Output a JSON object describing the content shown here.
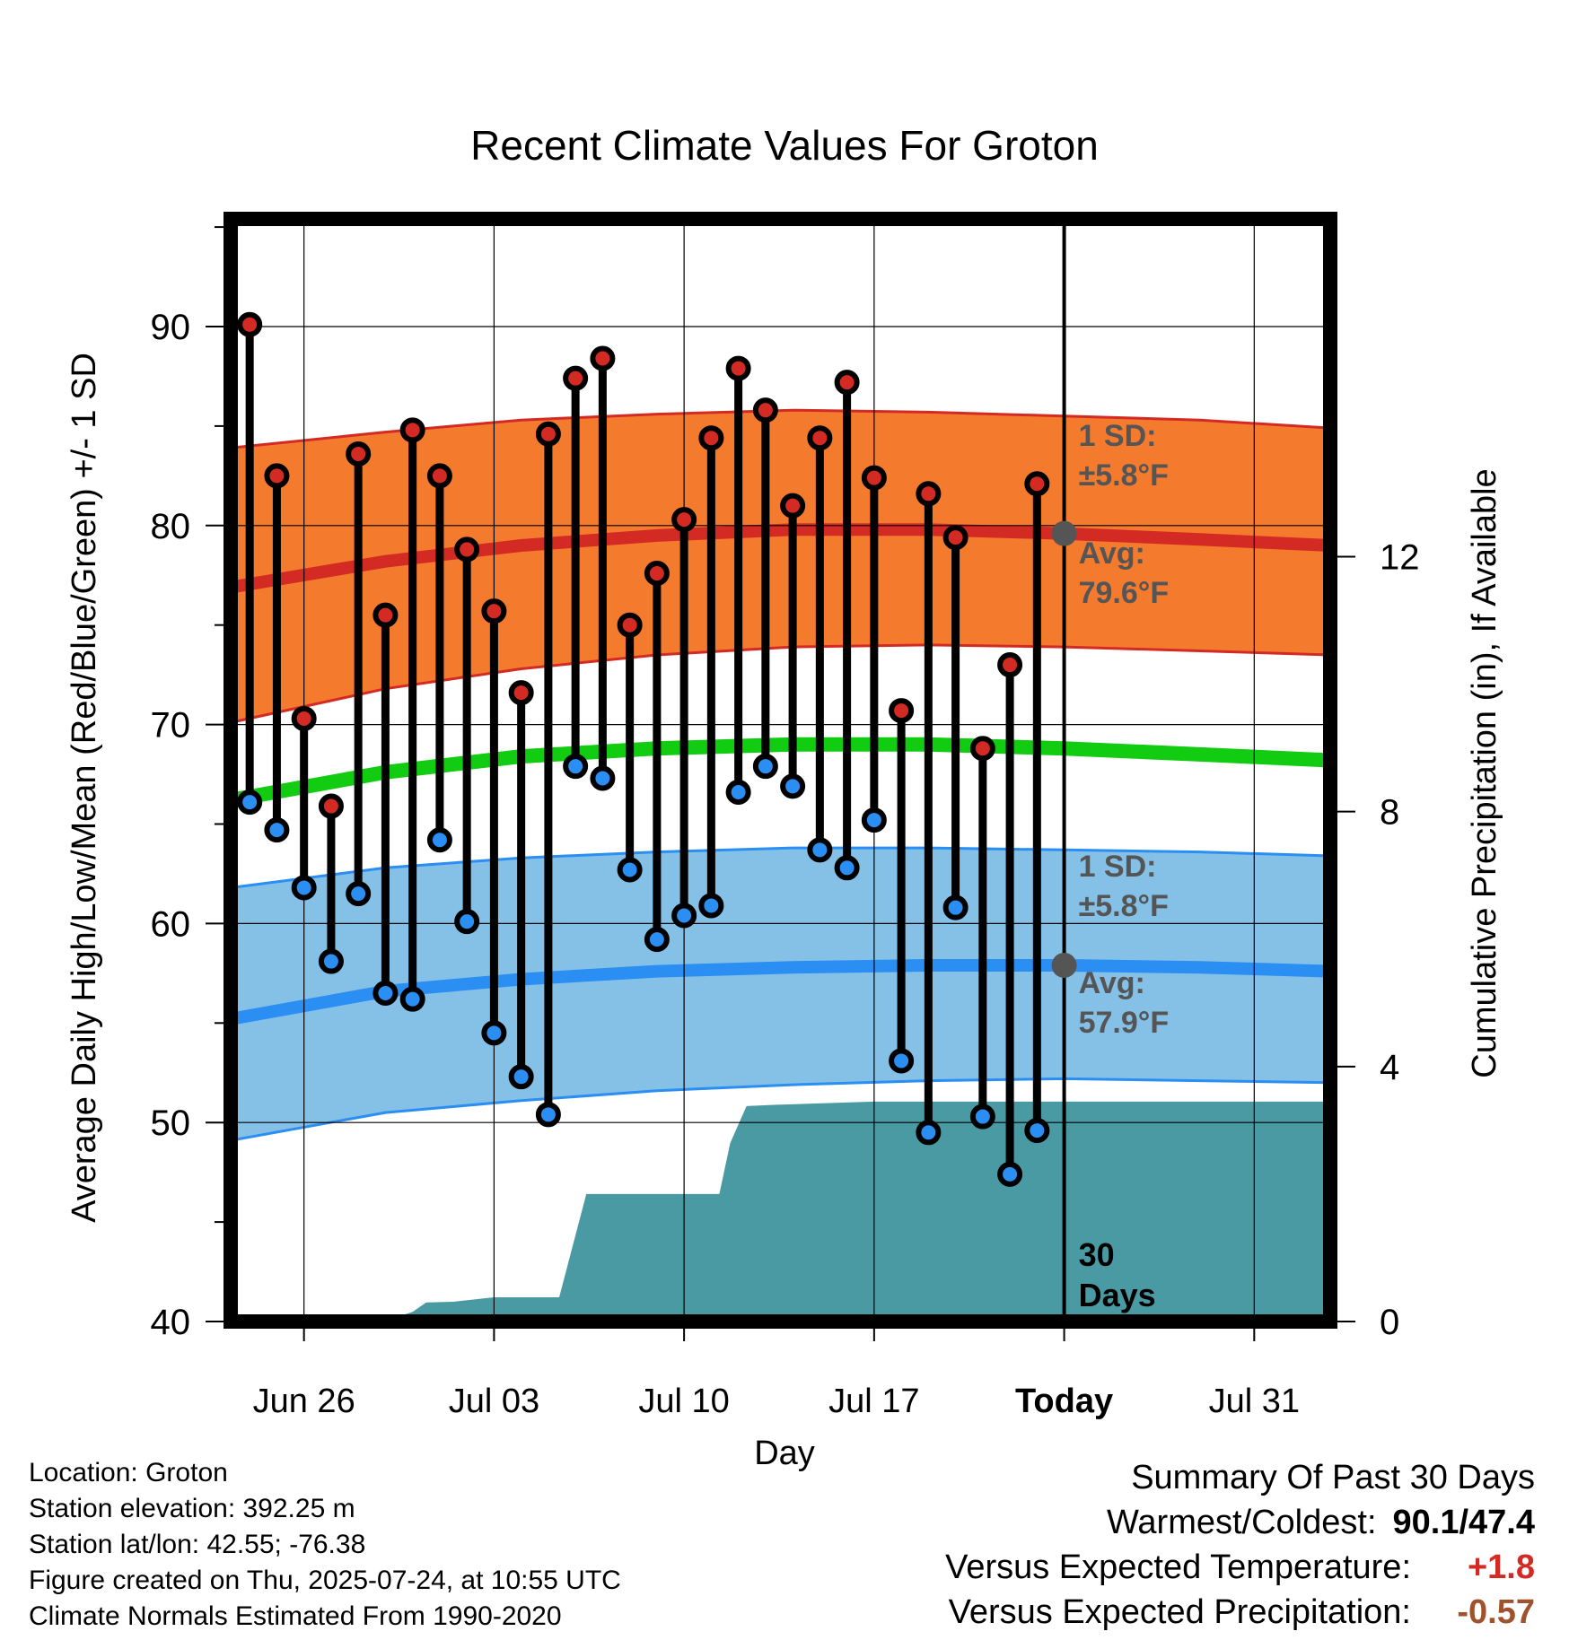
{
  "chart_data": {
    "type": "line",
    "title": "Recent Climate Values For Groton",
    "xlabel": "Day",
    "ylabel": "Average Daily High/Low/Mean (Red/Blue/Green) +/- 1 SD",
    "y2label": "Cumulative Precipitation (in), If Available",
    "ylim": [
      40,
      95
    ],
    "y2lim": [
      0,
      17.3
    ],
    "y_ticks": [
      "40",
      "50",
      "60",
      "70",
      "80",
      "90"
    ],
    "y2_ticks": [
      "0",
      "4",
      "8",
      "12"
    ],
    "x_ticks": [
      "Jun 26",
      "Jul 03",
      "Jul 10",
      "Jul 17",
      "Today",
      "Jul 31"
    ],
    "x_tick_days": [
      2,
      9,
      16,
      23,
      30,
      37
    ],
    "xlim": [
      -0.7,
      39.8
    ],
    "grid": true,
    "days": [
      0,
      1,
      2,
      3,
      4,
      5,
      6,
      7,
      8,
      9,
      10,
      11,
      12,
      13,
      14,
      15,
      16,
      17,
      18,
      19,
      20,
      21,
      22,
      23,
      24,
      25,
      26,
      27,
      28,
      29
    ],
    "highs": [
      90.1,
      82.5,
      70.3,
      65.9,
      83.6,
      75.5,
      84.8,
      82.5,
      78.8,
      75.7,
      71.6,
      84.6,
      87.4,
      88.4,
      75.0,
      77.6,
      80.3,
      84.4,
      87.9,
      85.8,
      81.0,
      84.4,
      87.2,
      82.4,
      70.7,
      81.6,
      79.4,
      68.8,
      73.0,
      82.1
    ],
    "lows": [
      66.1,
      64.7,
      61.8,
      58.1,
      61.5,
      56.5,
      56.2,
      64.2,
      60.1,
      54.5,
      52.3,
      50.4,
      67.9,
      67.3,
      62.7,
      59.2,
      60.4,
      60.9,
      66.6,
      67.9,
      66.9,
      63.7,
      62.8,
      65.2,
      53.1,
      49.5,
      60.8,
      50.3,
      47.4,
      49.6
    ],
    "normal_high": {
      "days": [
        -0.7,
        5,
        10,
        15,
        20,
        25,
        30,
        35,
        39.8
      ],
      "values": [
        76.9,
        78.2,
        79.0,
        79.5,
        79.8,
        79.8,
        79.6,
        79.3,
        79.0
      ]
    },
    "normal_low": {
      "days": [
        -0.7,
        5,
        10,
        15,
        20,
        25,
        30,
        35,
        39.8
      ],
      "values": [
        55.2,
        56.6,
        57.2,
        57.6,
        57.8,
        57.9,
        57.9,
        57.8,
        57.6
      ]
    },
    "normal_mean": {
      "days": [
        -0.7,
        5,
        10,
        15,
        20,
        25,
        30,
        35,
        39.8
      ],
      "values": [
        66.2,
        67.6,
        68.4,
        68.8,
        69.0,
        69.0,
        68.8,
        68.5,
        68.2
      ]
    },
    "high_sd_upper": {
      "days": [
        -0.7,
        5,
        10,
        15,
        20,
        25,
        30,
        35,
        39.8
      ],
      "values": [
        83.9,
        84.7,
        85.3,
        85.6,
        85.8,
        85.7,
        85.5,
        85.3,
        84.9
      ]
    },
    "high_sd_lower": {
      "days": [
        -0.7,
        5,
        10,
        15,
        20,
        25,
        30,
        35,
        39.8
      ],
      "values": [
        70.1,
        71.8,
        72.8,
        73.5,
        73.9,
        74.0,
        73.9,
        73.7,
        73.5
      ]
    },
    "low_sd_upper": {
      "days": [
        -0.7,
        5,
        10,
        15,
        20,
        25,
        30,
        35,
        39.8
      ],
      "values": [
        61.8,
        62.8,
        63.3,
        63.6,
        63.8,
        63.8,
        63.7,
        63.6,
        63.4
      ]
    },
    "low_sd_lower": {
      "days": [
        -0.7,
        5,
        10,
        15,
        20,
        25,
        30,
        35,
        39.8
      ],
      "values": [
        49.1,
        50.5,
        51.1,
        51.6,
        51.9,
        52.1,
        52.2,
        52.1,
        52.0
      ]
    },
    "precip": {
      "days": [
        -0.7,
        1.5,
        3.5,
        4.5,
        5.5,
        6.0,
        6.5,
        7.5,
        9.0,
        11.4,
        12.4,
        12.7,
        17.3,
        17.7,
        18.3,
        19.3,
        23,
        39.8
      ],
      "values": [
        0.02,
        0.02,
        0.04,
        0.06,
        0.08,
        0.15,
        0.3,
        0.31,
        0.38,
        0.38,
        2.0,
        2.0,
        2.0,
        2.8,
        3.38,
        3.4,
        3.45,
        3.45
      ]
    },
    "annotations": {
      "high_sd_label": "1 SD:",
      "high_sd_value": "±5.8°F",
      "high_avg_label": "Avg:",
      "high_avg_value": "79.6°F",
      "low_sd_label": "1 SD:",
      "low_sd_value": "±5.8°F",
      "low_avg_label": "Avg:",
      "low_avg_value": "57.9°F",
      "window_line1": "30",
      "window_line2": "Days"
    },
    "colors": {
      "high_band": "#f47a2e",
      "high_band_edge": "#d42a24",
      "high_line": "#d42a24",
      "low_band": "#85c0e6",
      "low_band_edge": "#2a8ef2",
      "low_line": "#2a8ef2",
      "mean_line": "#12cc12",
      "precip": "#4a9aa4",
      "high_marker": "#d42a24",
      "low_marker": "#2a8ef2",
      "today_marker": "#555555",
      "annotation_text": "#555555"
    }
  },
  "info": {
    "location": "Location: Groton",
    "elevation": "Station elevation: 392.25 m",
    "latlon": "Station lat/lon: 42.55; -76.38",
    "created": "Figure created on Thu, 2025-07-24, at 10:55 UTC",
    "normals": "Climate Normals Estimated From 1990-2020"
  },
  "summary": {
    "title": "Summary Of Past 30 Days",
    "warm_cold_label": "Warmest/Coldest:",
    "warm_cold_value": "90.1/47.4",
    "temp_label": "Versus Expected Temperature:",
    "temp_value": "+1.8",
    "temp_color": "#d42a24",
    "precip_label": "Versus Expected Precipitation:",
    "precip_value": "-0.57",
    "precip_color": "#a0522d"
  }
}
